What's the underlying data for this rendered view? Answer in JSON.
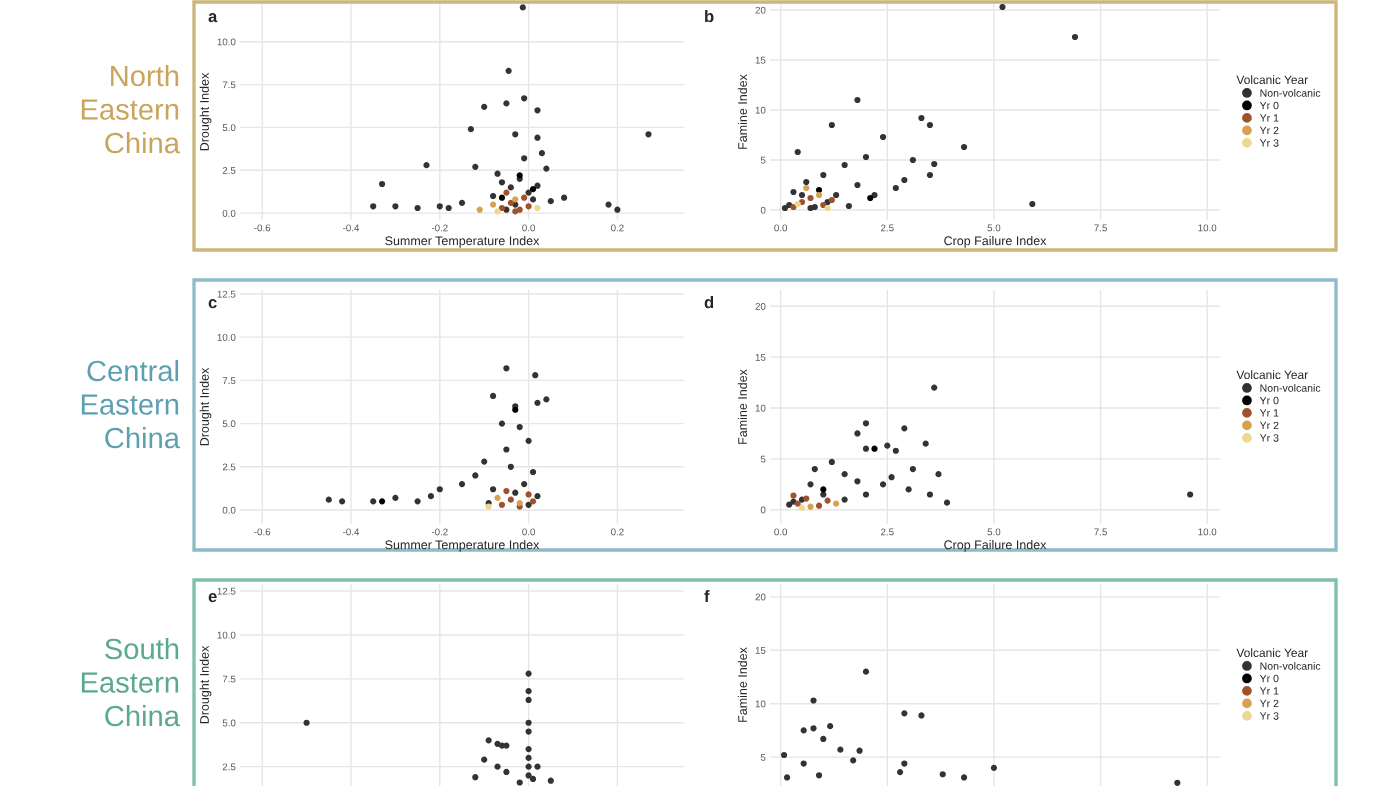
{
  "chart_data": [
    {
      "type": "scatter",
      "annotations": [
        "a",
        "North Eastern China"
      ],
      "xlabel": "Summer Temperature Index",
      "ylabel": "Drought Index",
      "xlim": [
        -0.65,
        0.35
      ],
      "ylim": [
        -0.4,
        12.2
      ],
      "xticks": [
        {
          "value": -0.6,
          "label": "-0.6"
        },
        {
          "value": -0.4,
          "label": "-0.4"
        },
        {
          "value": -0.2,
          "label": "-0.2"
        },
        {
          "value": 0.0,
          "label": "0.0"
        },
        {
          "value": 0.2,
          "label": "0.2"
        }
      ],
      "yticks": [
        {
          "value": 0,
          "label": "0.0"
        },
        {
          "value": 2.5,
          "label": "2.5"
        },
        {
          "value": 5,
          "label": "5.0"
        },
        {
          "value": 7.5,
          "label": "7.5"
        },
        {
          "value": 10,
          "label": "10.0"
        }
      ],
      "grid": true,
      "marker": "circle",
      "series": [
        {
          "color": "#333333",
          "x": [
            -0.013,
            -0.045,
            -0.05,
            -0.1,
            -0.01,
            0.02,
            -0.13,
            -0.03,
            0.02,
            0.27,
            -0.23,
            -0.12,
            -0.07,
            0.04,
            -0.33,
            -0.35,
            -0.3,
            -0.25,
            -0.2,
            0.08,
            0.18,
            0.2,
            0.05,
            -0.04,
            -0.02,
            0.0,
            0.01,
            -0.06,
            -0.03,
            0.02,
            -0.08,
            -0.01,
            0.03,
            -0.05,
            -0.15,
            -0.18
          ],
          "values": [
            12.0,
            8.3,
            6.4,
            6.2,
            6.7,
            6.0,
            4.9,
            4.6,
            4.4,
            4.6,
            2.8,
            2.7,
            2.3,
            2.6,
            1.7,
            0.4,
            0.4,
            0.3,
            0.4,
            0.9,
            0.5,
            0.2,
            0.7,
            1.5,
            2.0,
            1.2,
            0.8,
            1.8,
            0.5,
            1.6,
            1.0,
            3.2,
            3.5,
            0.2,
            0.6,
            0.3
          ]
        },
        {
          "color": "#000000",
          "x": [
            -0.06,
            -0.02,
            0.01
          ],
          "values": [
            0.9,
            2.2,
            1.4
          ]
        },
        {
          "color": "#a0522d",
          "x": [
            -0.06,
            -0.04,
            -0.02,
            -0.01,
            0.0,
            -0.05,
            -0.03
          ],
          "values": [
            0.3,
            0.6,
            0.2,
            0.9,
            0.4,
            1.2,
            0.1
          ]
        },
        {
          "color": "#d8a050",
          "x": [
            -0.08,
            -0.03,
            -0.11
          ],
          "values": [
            0.5,
            0.8,
            0.2
          ]
        },
        {
          "color": "#ecd890",
          "x": [
            -0.07,
            0.02
          ],
          "values": [
            0.1,
            0.3
          ]
        }
      ]
    },
    {
      "type": "scatter",
      "annotations": [
        "b"
      ],
      "xlabel": "Crop Failure Index",
      "ylabel": "Famine Index",
      "legend_title": "Volcanic Year",
      "legend": "right",
      "xlim": [
        -0.25,
        10.3
      ],
      "ylim": [
        -1,
        20.6
      ],
      "xticks": [
        {
          "value": 0,
          "label": "0.0"
        },
        {
          "value": 2.5,
          "label": "2.5"
        },
        {
          "value": 5,
          "label": "5.0"
        },
        {
          "value": 7.5,
          "label": "7.5"
        },
        {
          "value": 10,
          "label": "10.0"
        }
      ],
      "yticks": [
        0,
        5,
        10,
        15,
        20
      ],
      "grid": true,
      "marker": "circle",
      "series": [
        {
          "name": "Non-volcanic",
          "color": "#333333",
          "x": [
            5.2,
            6.9,
            1.8,
            1.2,
            3.3,
            3.5,
            2.4,
            4.3,
            0.4,
            2.0,
            3.1,
            3.6,
            3.5,
            2.9,
            2.7,
            1.5,
            1.0,
            0.6,
            2.2,
            0.2,
            0.5,
            0.8,
            1.3,
            1.8,
            5.9,
            0.3,
            0.1,
            1.1,
            1.6,
            0.7
          ],
          "values": [
            20.3,
            17.3,
            11.0,
            8.5,
            9.2,
            8.5,
            7.3,
            6.3,
            5.8,
            5.3,
            5.0,
            4.6,
            3.5,
            3.0,
            2.2,
            4.5,
            3.5,
            2.8,
            1.5,
            0.5,
            1.5,
            0.3,
            1.5,
            2.5,
            0.6,
            1.8,
            0.2,
            0.8,
            0.4,
            0.2
          ]
        },
        {
          "name": "Yr 0",
          "color": "#000000",
          "x": [
            0.9,
            2.1
          ],
          "values": [
            2.0,
            1.2
          ]
        },
        {
          "name": "Yr 1",
          "color": "#a0522d",
          "x": [
            0.5,
            0.7,
            1.0,
            0.3,
            1.2
          ],
          "values": [
            0.8,
            1.2,
            0.5,
            0.3,
            1.0
          ]
        },
        {
          "name": "Yr 2",
          "color": "#d8a050",
          "x": [
            0.9,
            0.6
          ],
          "values": [
            1.5,
            2.2
          ]
        },
        {
          "name": "Yr 3",
          "color": "#ecd890",
          "x": [
            0.4,
            1.1
          ],
          "values": [
            0.6,
            0.2
          ]
        }
      ]
    },
    {
      "type": "scatter",
      "annotations": [
        "c",
        "Central Eastern China"
      ],
      "xlabel": "Summer Temperature Index",
      "ylabel": "Drought Index",
      "xlim": [
        -0.65,
        0.35
      ],
      "ylim": [
        -0.81,
        12.73
      ],
      "xticks": [
        {
          "value": -0.6,
          "label": "-0.6"
        },
        {
          "value": -0.4,
          "label": "-0.4"
        },
        {
          "value": -0.2,
          "label": "-0.2"
        },
        {
          "value": 0.0,
          "label": "0.0"
        },
        {
          "value": 0.2,
          "label": "0.2"
        }
      ],
      "yticks": [
        {
          "value": 0,
          "label": "0.0"
        },
        {
          "value": 2.5,
          "label": "2.5"
        },
        {
          "value": 5,
          "label": "5.0"
        },
        {
          "value": 7.5,
          "label": "7.5"
        },
        {
          "value": 10,
          "label": "10.0"
        },
        {
          "value": 12.5,
          "label": "12.5"
        }
      ],
      "grid": true,
      "marker": "circle",
      "series": [
        {
          "color": "#333333",
          "x": [
            0.015,
            -0.05,
            -0.08,
            -0.03,
            0.02,
            0.04,
            -0.06,
            -0.02,
            0.0,
            -0.1,
            -0.05,
            -0.15,
            -0.2,
            -0.3,
            -0.35,
            -0.45,
            -0.42,
            -0.25,
            -0.22,
            -0.12,
            -0.08,
            -0.04,
            0.01,
            -0.01,
            0.02,
            -0.09,
            0.0,
            -0.03
          ],
          "values": [
            7.8,
            8.2,
            6.6,
            6.0,
            6.2,
            6.4,
            5.0,
            4.8,
            4.0,
            2.8,
            3.5,
            1.5,
            1.2,
            0.7,
            0.5,
            0.6,
            0.5,
            0.5,
            0.8,
            2.0,
            1.2,
            2.5,
            2.2,
            1.5,
            0.8,
            0.4,
            0.3,
            1.0
          ]
        },
        {
          "color": "#000000",
          "x": [
            -0.33,
            -0.03
          ],
          "values": [
            0.5,
            5.8
          ]
        },
        {
          "color": "#a0522d",
          "x": [
            -0.06,
            -0.04,
            -0.02,
            0.0,
            -0.05,
            0.01
          ],
          "values": [
            0.3,
            0.6,
            0.2,
            0.9,
            1.1,
            0.5
          ]
        },
        {
          "color": "#d8a050",
          "x": [
            -0.07,
            -0.02
          ],
          "values": [
            0.7,
            0.4
          ]
        },
        {
          "color": "#ecd890",
          "x": [
            -0.09
          ],
          "values": [
            0.2
          ]
        }
      ]
    },
    {
      "type": "scatter",
      "annotations": [
        "d"
      ],
      "xlabel": "Crop Failure Index",
      "ylabel": "Famine Index",
      "legend_title": "Volcanic Year",
      "legend": "right",
      "xlim": [
        -0.25,
        10.3
      ],
      "ylim": [
        -1.4,
        21.6
      ],
      "xticks": [
        {
          "value": 0,
          "label": "0.0"
        },
        {
          "value": 2.5,
          "label": "2.5"
        },
        {
          "value": 5,
          "label": "5.0"
        },
        {
          "value": 7.5,
          "label": "7.5"
        },
        {
          "value": 10,
          "label": "10.0"
        }
      ],
      "yticks": [
        0,
        5,
        10,
        15,
        20
      ],
      "grid": true,
      "marker": "circle",
      "series": [
        {
          "name": "Non-volcanic",
          "color": "#333333",
          "x": [
            3.6,
            2.0,
            1.8,
            2.9,
            3.4,
            2.5,
            2.0,
            2.7,
            1.2,
            0.8,
            1.5,
            3.1,
            3.7,
            2.4,
            3.0,
            3.5,
            3.9,
            9.6,
            0.2,
            0.5,
            1.0,
            1.5,
            2.0,
            0.7,
            0.3,
            1.8,
            2.6
          ],
          "values": [
            12.0,
            8.5,
            7.5,
            8.0,
            6.5,
            6.3,
            6.0,
            5.8,
            4.7,
            4.0,
            3.5,
            4.0,
            3.5,
            2.5,
            2.0,
            1.5,
            0.7,
            1.5,
            0.5,
            1.0,
            1.5,
            1.0,
            1.5,
            2.5,
            0.8,
            2.8,
            3.2
          ]
        },
        {
          "name": "Yr 0",
          "color": "#000000",
          "x": [
            2.2,
            1.0
          ],
          "values": [
            6.0,
            2.0
          ]
        },
        {
          "name": "Yr 1",
          "color": "#a0522d",
          "x": [
            0.4,
            0.6,
            0.9,
            1.1,
            0.3
          ],
          "values": [
            0.6,
            1.1,
            0.4,
            0.9,
            1.4
          ]
        },
        {
          "name": "Yr 2",
          "color": "#d8a050",
          "x": [
            0.7,
            1.3
          ],
          "values": [
            0.3,
            0.6
          ]
        },
        {
          "name": "Yr 3",
          "color": "#ecd890",
          "x": [
            0.5
          ],
          "values": [
            0.2
          ]
        }
      ]
    },
    {
      "type": "scatter",
      "annotations": [
        "e",
        "South Eastern China"
      ],
      "ylabel": "Drought Index",
      "tick_labels": "y",
      "xlim": [
        -0.65,
        0.35
      ],
      "ylim": [
        1.4,
        12.9
      ],
      "xticks": [
        {
          "value": -0.6,
          "label": null
        },
        {
          "value": -0.4,
          "label": null
        },
        {
          "value": -0.2,
          "label": null
        },
        {
          "value": 0.0,
          "label": null
        },
        {
          "value": 0.2,
          "label": null
        }
      ],
      "yticks": [
        {
          "value": 2.5,
          "label": "2.5"
        },
        {
          "value": 5,
          "label": "5.0"
        },
        {
          "value": 7.5,
          "label": "7.5"
        },
        {
          "value": 10,
          "label": "10.0"
        },
        {
          "value": 12.5,
          "label": "12.5"
        }
      ],
      "grid": true,
      "marker": "circle",
      "series": [
        {
          "color": "#333333",
          "x": [
            -0.5,
            0.0,
            0.0,
            0.0,
            0.0,
            0.0,
            0.0,
            0.0,
            0.0,
            0.0,
            -0.07,
            -0.06,
            -0.05,
            -0.09,
            -0.1,
            -0.07,
            -0.05,
            -0.12,
            0.02,
            0.05,
            -0.02,
            0.01
          ],
          "values": [
            5.0,
            7.8,
            6.8,
            6.3,
            5.0,
            4.5,
            3.5,
            3.0,
            2.5,
            2.0,
            3.8,
            3.7,
            3.7,
            4.0,
            2.9,
            2.5,
            2.2,
            1.9,
            2.5,
            1.7,
            1.6,
            1.8
          ]
        }
      ]
    },
    {
      "type": "scatter",
      "annotations": [
        "f"
      ],
      "ylabel": "Famine Index",
      "legend_title": "Volcanic Year",
      "legend": "right",
      "tick_labels": "y",
      "xlim": [
        -0.25,
        10.3
      ],
      "ylim": [
        2.3,
        21.2
      ],
      "xticks": [
        {
          "value": 0,
          "label": null
        },
        {
          "value": 2.5,
          "label": null
        },
        {
          "value": 5,
          "label": null
        },
        {
          "value": 7.5,
          "label": null
        },
        {
          "value": 10,
          "label": null
        }
      ],
      "yticks": [
        5,
        10,
        15,
        20
      ],
      "grid": true,
      "marker": "circle",
      "series": [
        {
          "name": "Non-volcanic",
          "color": "#333333",
          "x": [
            2.0,
            0.77,
            0.54,
            0.77,
            1.16,
            1.0,
            2.9,
            3.3,
            0.08,
            0.54,
            1.4,
            1.85,
            1.7,
            2.9,
            5.0,
            9.3,
            2.8,
            3.8,
            4.3,
            0.9,
            0.15
          ],
          "values": [
            13.0,
            10.3,
            7.5,
            7.7,
            7.9,
            6.7,
            9.1,
            8.9,
            5.2,
            4.4,
            5.7,
            5.6,
            4.7,
            4.4,
            4.0,
            2.6,
            3.6,
            3.4,
            3.1,
            3.3,
            3.1
          ]
        },
        {
          "name": "Yr 0",
          "color": "#000000"
        },
        {
          "name": "Yr 1",
          "color": "#a0522d"
        },
        {
          "name": "Yr 2",
          "color": "#d8a050"
        },
        {
          "name": "Yr 3",
          "color": "#ecd890"
        }
      ]
    }
  ]
}
